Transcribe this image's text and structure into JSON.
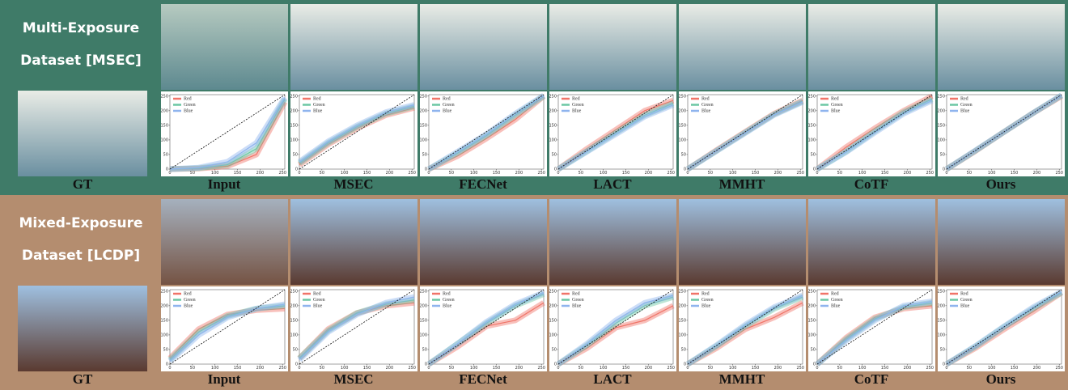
{
  "plot": {
    "xlim": [
      0,
      255
    ],
    "ylim": [
      0,
      255
    ],
    "ticks": [
      0,
      50,
      100,
      150,
      200,
      250
    ],
    "x": [
      0,
      64,
      128,
      192,
      255
    ],
    "legend": [
      {
        "name": "Red",
        "color": "#f07468"
      },
      {
        "name": "Green",
        "color": "#6cc7a4"
      },
      {
        "name": "Blue",
        "color": "#8fb4ee"
      }
    ]
  },
  "panels": [
    {
      "title_lines": [
        "Multi-Exposure",
        "Dataset [MSEC]"
      ],
      "gt_label": "GT",
      "background": "#3f7b68",
      "scene": [
        "#e9ece6",
        "#6a8fa0"
      ],
      "methods": [
        {
          "name": "Input",
          "curves": [
            [
              0,
              2,
              10,
              50,
              230
            ],
            [
              0,
              3,
              15,
              70,
              240
            ],
            [
              0,
              5,
              25,
              90,
              245
            ]
          ]
        },
        {
          "name": "MSEC",
          "curves": [
            [
              15,
              85,
              140,
              185,
              210
            ],
            [
              20,
              90,
              145,
              190,
              215
            ],
            [
              25,
              95,
              150,
              195,
              220
            ]
          ]
        },
        {
          "name": "FECNet",
          "curves": [
            [
              0,
              45,
              105,
              170,
              250
            ],
            [
              0,
              55,
              115,
              185,
              250
            ],
            [
              0,
              60,
              120,
              190,
              252
            ]
          ]
        },
        {
          "name": "LACT",
          "curves": [
            [
              0,
              70,
              135,
              200,
              235
            ],
            [
              0,
              62,
              125,
              185,
              225
            ],
            [
              0,
              60,
              120,
              180,
              220
            ]
          ]
        },
        {
          "name": "MMHT",
          "curves": [
            [
              0,
              65,
              128,
              190,
              235
            ],
            [
              0,
              63,
              126,
              188,
              232
            ],
            [
              0,
              62,
              124,
              186,
              230
            ]
          ]
        },
        {
          "name": "CoTF",
          "curves": [
            [
              0,
              75,
              140,
              200,
              250
            ],
            [
              0,
              60,
              130,
              195,
              240
            ],
            [
              0,
              58,
              125,
              190,
              235
            ]
          ]
        },
        {
          "name": "Ours",
          "curves": [
            [
              0,
              62,
              128,
              192,
              250
            ],
            [
              0,
              63,
              128,
              192,
              252
            ],
            [
              0,
              64,
              128,
              192,
              253
            ]
          ]
        }
      ]
    },
    {
      "title_lines": [
        "Mixed-Exposure",
        "Dataset [LCDP]"
      ],
      "gt_label": "GT",
      "background": "#b48d6f",
      "scene": [
        "#9fc0e0",
        "#5a3a30"
      ],
      "methods": [
        {
          "name": "Input",
          "curves": [
            [
              20,
              120,
              170,
              185,
              190
            ],
            [
              15,
              110,
              165,
              190,
              200
            ],
            [
              10,
              100,
              160,
              190,
              205
            ]
          ]
        },
        {
          "name": "MSEC",
          "curves": [
            [
              20,
              120,
              175,
              200,
              210
            ],
            [
              20,
              115,
              175,
              205,
              220
            ],
            [
              15,
              110,
              170,
              210,
              230
            ]
          ]
        },
        {
          "name": "FECNet",
          "curves": [
            [
              0,
              60,
              130,
              150,
              210
            ],
            [
              0,
              70,
              140,
              200,
              240
            ],
            [
              0,
              70,
              145,
              205,
              245
            ]
          ]
        },
        {
          "name": "LACT",
          "curves": [
            [
              0,
              55,
              125,
              150,
              200
            ],
            [
              0,
              65,
              140,
              200,
              230
            ],
            [
              0,
              70,
              150,
              210,
              235
            ]
          ]
        },
        {
          "name": "MMHT",
          "curves": [
            [
              0,
              55,
              120,
              160,
              210
            ],
            [
              0,
              62,
              130,
              190,
              230
            ],
            [
              0,
              65,
              135,
              195,
              235
            ]
          ]
        },
        {
          "name": "CoTF",
          "curves": [
            [
              0,
              90,
              160,
              190,
              200
            ],
            [
              0,
              85,
              155,
              195,
              210
            ],
            [
              0,
              80,
              150,
              200,
              215
            ]
          ]
        },
        {
          "name": "Ours",
          "curves": [
            [
              0,
              55,
              120,
              180,
              245
            ],
            [
              0,
              60,
              128,
              190,
              245
            ],
            [
              0,
              62,
              130,
              195,
              248
            ]
          ]
        }
      ]
    }
  ]
}
